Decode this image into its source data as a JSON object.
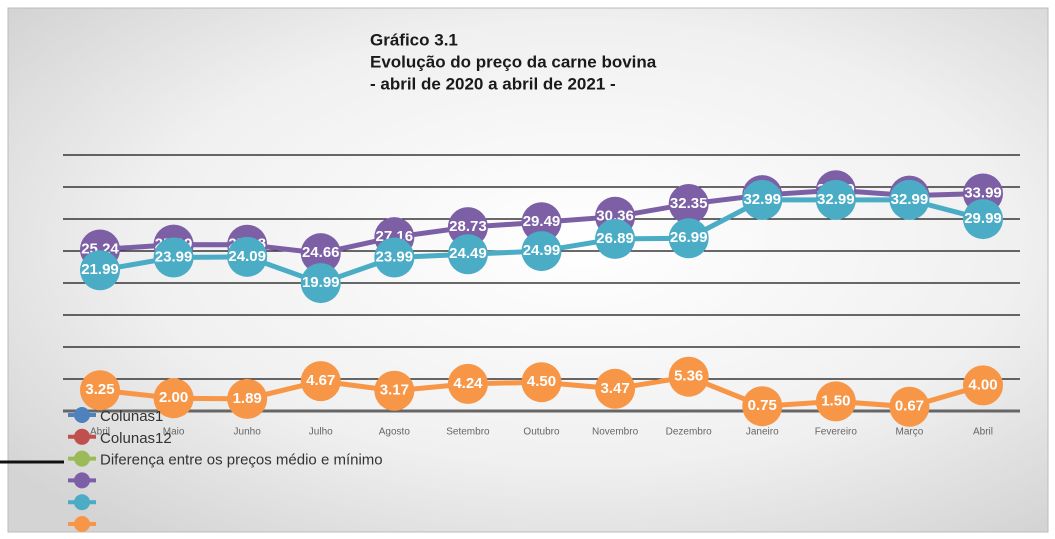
{
  "chart_data": {
    "type": "line",
    "title": [
      "Gráfico 3.1",
      "Evolução do preço da carne bovina",
      "- abril de 2020 a abril de 2021 -"
    ],
    "categories": [
      "Abril",
      "Maio",
      "Junho",
      "Julho",
      "Agosto",
      "Setembro",
      "Outubro",
      "Novembro",
      "Dezembro",
      "Janeiro",
      "Fevereiro",
      "Março",
      "Abril"
    ],
    "series": [
      {
        "color": "#7d5fa6",
        "values": [
          25.24,
          25.99,
          25.98,
          24.66,
          27.16,
          28.73,
          29.49,
          30.36,
          32.35,
          33.74,
          34.49,
          33.66,
          33.99
        ]
      },
      {
        "color": "#4bacc6",
        "values": [
          21.99,
          23.99,
          24.09,
          19.99,
          23.99,
          24.49,
          24.99,
          26.89,
          26.99,
          32.99,
          32.99,
          32.99,
          29.99
        ]
      },
      {
        "color": "#f79646",
        "values": [
          3.25,
          2.0,
          1.89,
          4.67,
          3.17,
          4.24,
          4.5,
          3.47,
          5.36,
          0.75,
          1.5,
          0.67,
          4.0
        ],
        "value_labels": [
          "3.25",
          "2.00",
          "1.89",
          "4.67",
          "3.17",
          "4.24",
          "4.50",
          "3.47",
          "5.36",
          "0.75",
          "1.50",
          "0.67",
          "4.00"
        ]
      }
    ],
    "legend": [
      {
        "name": "Colunas1",
        "color": "#4f81bd"
      },
      {
        "name": "Colunas12",
        "color": "#c0504d"
      },
      {
        "name": "Diferença entre os preços médio e mínimo",
        "color": "#9bbb59"
      },
      {
        "color": "#7d5fa6"
      },
      {
        "color": "#4bacc6"
      },
      {
        "color": "#f79646"
      }
    ],
    "ylim": [
      0,
      40
    ],
    "yticks": [
      0,
      5,
      10,
      15,
      20,
      25,
      30,
      35,
      40
    ],
    "grid": true
  }
}
